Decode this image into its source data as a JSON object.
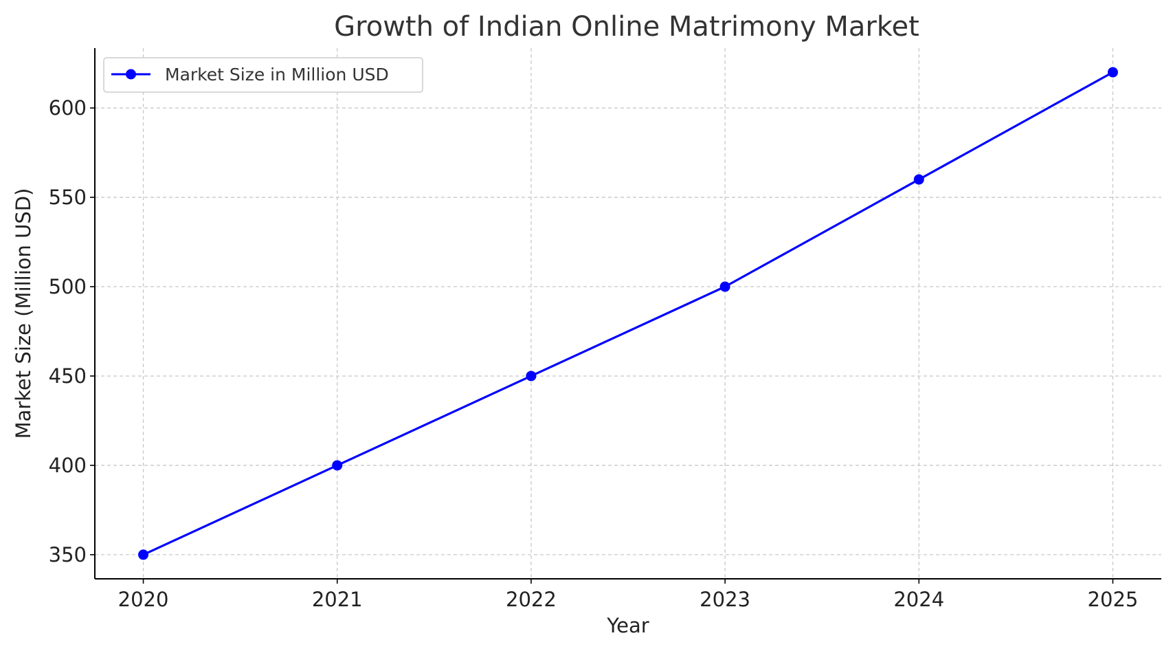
{
  "chart_data": {
    "type": "line",
    "title": "Growth of Indian Online Matrimony Market",
    "xlabel": "Year",
    "ylabel": "Market Size (Million USD)",
    "x": [
      2020,
      2021,
      2022,
      2023,
      2024,
      2025
    ],
    "x_tick_labels": [
      "2020",
      "2021",
      "2022",
      "2023",
      "2024",
      "2025"
    ],
    "y_ticks": [
      350,
      400,
      450,
      500,
      550,
      600
    ],
    "y_tick_labels": [
      "350",
      "400",
      "450",
      "500",
      "550",
      "600"
    ],
    "xlim": [
      2019.75,
      2025.25
    ],
    "ylim": [
      336.5,
      633.5
    ],
    "grid": true,
    "legend_position": "top-left",
    "series": [
      {
        "name": "Market Size in Million USD",
        "color": "#0000ff",
        "marker": "circle",
        "values": [
          350,
          400,
          450,
          500,
          560,
          620
        ]
      }
    ]
  }
}
